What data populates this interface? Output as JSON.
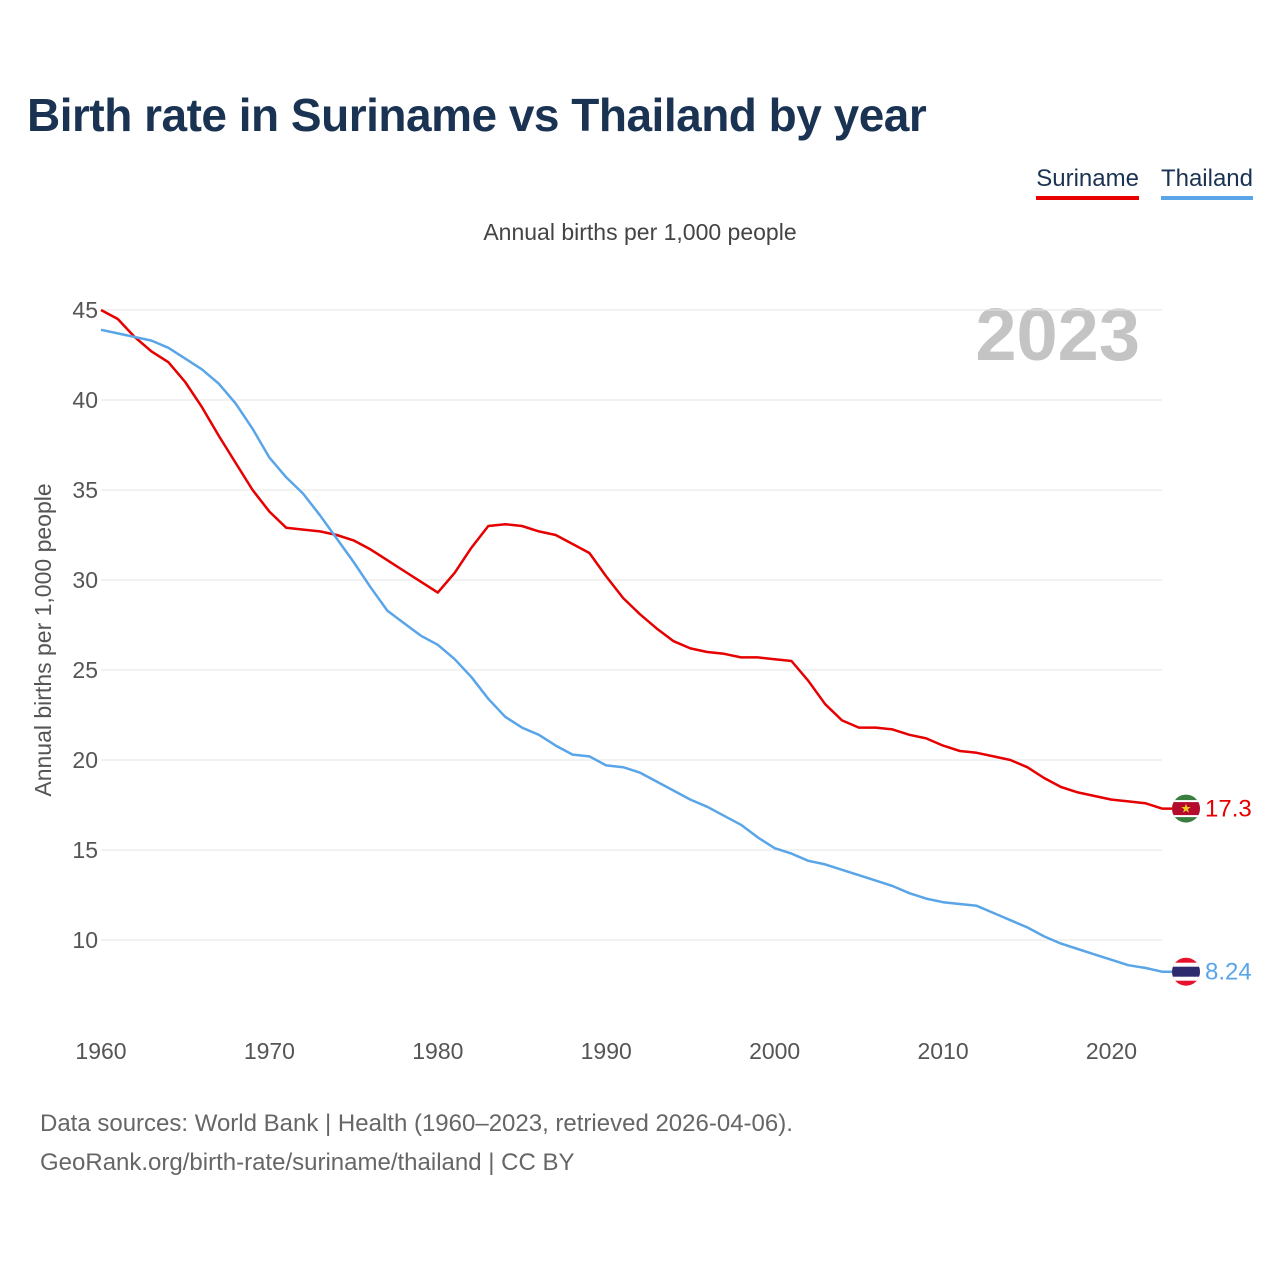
{
  "title": "Birth rate in Suriname vs Thailand by year",
  "legend": [
    {
      "label": "Suriname",
      "color": "#e60000"
    },
    {
      "label": "Thailand",
      "color": "#5aa5e8"
    }
  ],
  "subtitle": "Annual births per 1,000 people",
  "year_label": "2023",
  "footer": {
    "sources": "Data sources: World Bank | Health (1960–2023, retrieved 2026-04-06).",
    "credit": "GeoRank.org/birth-rate/suriname/thailand | CC BY"
  },
  "chart_data": {
    "type": "line",
    "title": "Birth rate in Suriname vs Thailand by year",
    "subtitle": "Annual births per 1,000 people",
    "xlabel": "",
    "ylabel": "Annual births per 1,000 people",
    "xlim": [
      1960,
      2023
    ],
    "ylim": [
      5,
      45
    ],
    "xticks": [
      1960,
      1970,
      1980,
      1990,
      2000,
      2010,
      2020
    ],
    "yticks": [
      10,
      15,
      20,
      25,
      30,
      35,
      40,
      45
    ],
    "grid": true,
    "legend_position": "top-right",
    "x": [
      1960,
      1961,
      1962,
      1963,
      1964,
      1965,
      1966,
      1967,
      1968,
      1969,
      1970,
      1971,
      1972,
      1973,
      1974,
      1975,
      1976,
      1977,
      1978,
      1979,
      1980,
      1981,
      1982,
      1983,
      1984,
      1985,
      1986,
      1987,
      1988,
      1989,
      1990,
      1991,
      1992,
      1993,
      1994,
      1995,
      1996,
      1997,
      1998,
      1999,
      2000,
      2001,
      2002,
      2003,
      2004,
      2005,
      2006,
      2007,
      2008,
      2009,
      2010,
      2011,
      2012,
      2013,
      2014,
      2015,
      2016,
      2017,
      2018,
      2019,
      2020,
      2021,
      2022,
      2023
    ],
    "series": [
      {
        "name": "Suriname",
        "color": "#e60000",
        "end_label": "17.3",
        "values": [
          45.0,
          44.5,
          43.5,
          42.7,
          42.1,
          41.0,
          39.6,
          38.0,
          36.5,
          35.0,
          33.8,
          32.9,
          32.8,
          32.7,
          32.5,
          32.2,
          31.7,
          31.1,
          30.5,
          29.9,
          29.3,
          30.4,
          31.8,
          33.0,
          33.1,
          33.0,
          32.7,
          32.5,
          32.0,
          31.5,
          30.2,
          29.0,
          28.1,
          27.3,
          26.6,
          26.2,
          26.0,
          25.9,
          25.7,
          25.7,
          25.6,
          25.5,
          24.4,
          23.1,
          22.2,
          21.8,
          21.8,
          21.7,
          21.4,
          21.2,
          20.8,
          20.5,
          20.4,
          20.2,
          20.0,
          19.6,
          19.0,
          18.5,
          18.2,
          18.0,
          17.8,
          17.7,
          17.6,
          17.3
        ]
      },
      {
        "name": "Thailand",
        "color": "#5aa5e8",
        "end_label": "8.24",
        "values": [
          43.9,
          43.7,
          43.5,
          43.3,
          42.9,
          42.3,
          41.7,
          40.9,
          39.8,
          38.4,
          36.8,
          35.7,
          34.8,
          33.6,
          32.3,
          31.0,
          29.6,
          28.3,
          27.6,
          26.9,
          26.4,
          25.6,
          24.6,
          23.4,
          22.4,
          21.8,
          21.4,
          20.8,
          20.3,
          20.2,
          19.7,
          19.6,
          19.3,
          18.8,
          18.3,
          17.8,
          17.4,
          16.9,
          16.4,
          15.7,
          15.1,
          14.8,
          14.4,
          14.2,
          13.9,
          13.6,
          13.3,
          13.0,
          12.6,
          12.3,
          12.1,
          12.0,
          11.9,
          11.5,
          11.1,
          10.7,
          10.2,
          9.8,
          9.5,
          9.2,
          8.9,
          8.6,
          8.45,
          8.24
        ]
      }
    ]
  }
}
